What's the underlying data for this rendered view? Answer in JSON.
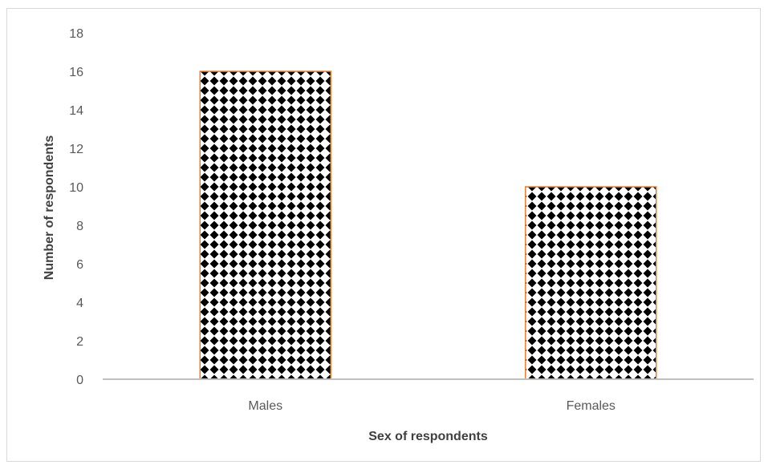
{
  "chart_data": {
    "type": "bar",
    "categories": [
      "Males",
      "Females"
    ],
    "values": [
      16,
      10
    ],
    "xlabel": "Sex of respondents",
    "ylabel": "Number of respondents",
    "ylim": [
      0,
      18
    ],
    "yticks": [
      0,
      2,
      4,
      6,
      8,
      10,
      12,
      14,
      16,
      18
    ],
    "grid": false,
    "legend": "none",
    "colors": {
      "bar_border": "#ed7d31",
      "bar_pattern_dark": "#000000",
      "bar_pattern_light": "#ffffff",
      "axis_line": "#bfbfbf",
      "tick_text": "#595959",
      "title_text": "#404040"
    }
  }
}
